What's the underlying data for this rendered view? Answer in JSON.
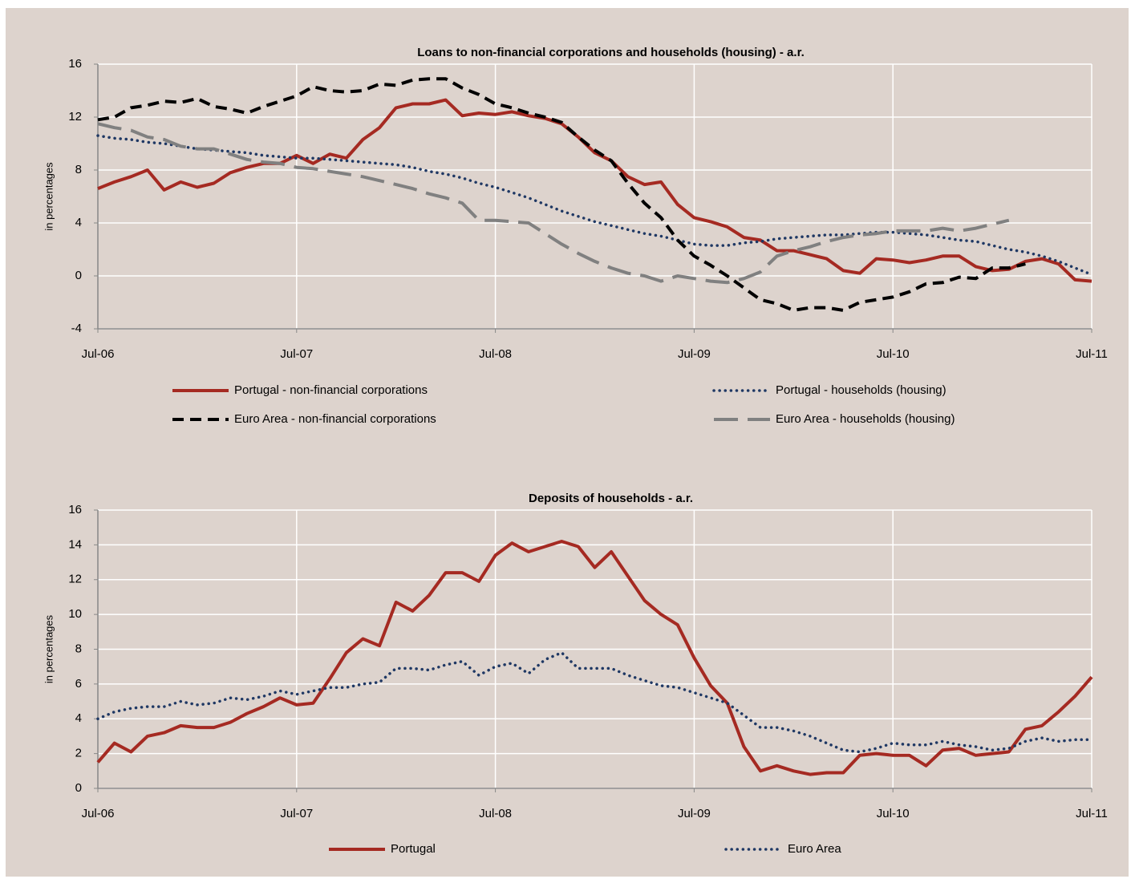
{
  "chart_data": [
    {
      "type": "line",
      "title": "Loans to non-financial corporations and households (housing) - a.r.",
      "ylabel": "in percentages",
      "categories": [
        "Jul-06",
        null,
        null,
        null,
        null,
        null,
        null,
        null,
        null,
        null,
        null,
        null,
        "Jul-07",
        null,
        null,
        null,
        null,
        null,
        null,
        null,
        null,
        null,
        null,
        null,
        "Jul-08",
        null,
        null,
        null,
        null,
        null,
        null,
        null,
        null,
        null,
        null,
        null,
        "Jul-09",
        null,
        null,
        null,
        null,
        null,
        null,
        null,
        null,
        null,
        null,
        null,
        "Jul-10",
        null,
        null,
        null,
        null,
        null,
        null,
        null,
        null,
        null,
        null,
        null,
        "Jul-11"
      ],
      "ylim": [
        -4,
        16
      ],
      "yticks": [
        -4,
        0,
        4,
        8,
        12,
        16
      ],
      "grid": true,
      "series": [
        {
          "name": "Portugal - non-financial corporations",
          "color": "#a52a22",
          "style": "solid",
          "values": [
            6.6,
            7.1,
            7.5,
            8.0,
            6.5,
            7.1,
            6.7,
            7.0,
            7.8,
            8.2,
            8.5,
            8.5,
            9.1,
            8.5,
            9.2,
            8.9,
            10.3,
            11.2,
            12.7,
            13.0,
            13.0,
            13.3,
            12.1,
            12.3,
            12.2,
            12.4,
            12.1,
            11.9,
            11.5,
            10.5,
            9.3,
            8.7,
            7.5,
            6.9,
            7.1,
            5.4,
            4.4,
            4.1,
            3.7,
            2.9,
            2.7,
            1.9,
            1.9,
            1.6,
            1.3,
            0.4,
            0.2,
            1.3,
            1.2,
            1.0,
            1.2,
            1.5,
            1.5,
            0.7,
            0.4,
            0.5,
            1.1,
            1.3,
            0.9,
            -0.3,
            -0.4
          ]
        },
        {
          "name": "Portugal - households (housing)",
          "color": "#1f3864",
          "style": "dotted",
          "values": [
            10.6,
            10.4,
            10.3,
            10.1,
            10.0,
            9.8,
            9.6,
            9.5,
            9.4,
            9.3,
            9.1,
            9.0,
            8.9,
            8.9,
            8.8,
            8.7,
            8.6,
            8.5,
            8.4,
            8.2,
            7.9,
            7.7,
            7.4,
            7.0,
            6.7,
            6.3,
            5.9,
            5.4,
            4.9,
            4.5,
            4.1,
            3.8,
            3.5,
            3.2,
            3.0,
            2.7,
            2.4,
            2.3,
            2.3,
            2.5,
            2.6,
            2.8,
            2.9,
            3.0,
            3.1,
            3.1,
            3.2,
            3.3,
            3.3,
            3.2,
            3.1,
            2.9,
            2.7,
            2.6,
            2.3,
            2.0,
            1.8,
            1.5,
            1.1,
            0.6,
            0.1
          ]
        },
        {
          "name": "Euro Area - non-financial corporations",
          "color": "#000000",
          "style": "dashed",
          "values": [
            11.8,
            12.0,
            12.7,
            12.9,
            13.2,
            13.1,
            13.4,
            12.8,
            12.6,
            12.3,
            12.8,
            13.2,
            13.6,
            14.3,
            14.0,
            13.9,
            14.0,
            14.5,
            14.4,
            14.8,
            14.9,
            14.9,
            14.2,
            13.7,
            13.0,
            12.7,
            12.3,
            12.0,
            11.6,
            10.5,
            9.5,
            8.7,
            7.0,
            5.5,
            4.4,
            2.7,
            1.5,
            0.8,
            0.0,
            -0.9,
            -1.8,
            -2.1,
            -2.6,
            -2.4,
            -2.4,
            -2.6,
            -2.0,
            -1.8,
            -1.6,
            -1.2,
            -0.6,
            -0.5,
            -0.1,
            -0.2,
            0.6,
            0.6,
            0.9,
            null,
            null,
            null,
            null
          ]
        },
        {
          "name": "Euro Area - households (housing)",
          "color": "#808080",
          "style": "longdash",
          "values": [
            11.5,
            11.2,
            11.0,
            10.5,
            10.3,
            9.8,
            9.6,
            9.6,
            9.2,
            8.8,
            8.6,
            8.5,
            8.2,
            8.1,
            7.9,
            7.7,
            7.5,
            7.2,
            6.9,
            6.6,
            6.2,
            5.9,
            5.5,
            4.2,
            4.2,
            4.1,
            4.0,
            3.2,
            2.4,
            1.7,
            1.1,
            0.6,
            0.2,
            0.0,
            -0.4,
            0.0,
            -0.2,
            -0.4,
            -0.5,
            -0.2,
            0.3,
            1.5,
            1.9,
            2.2,
            2.6,
            2.9,
            3.1,
            3.2,
            3.4,
            3.4,
            3.4,
            3.6,
            3.4,
            3.6,
            3.9,
            4.2,
            null,
            null,
            null,
            null,
            null
          ]
        }
      ]
    },
    {
      "type": "line",
      "title": "Deposits of households - a.r.",
      "ylabel": "in percentages",
      "categories": [
        "Jul-06",
        null,
        null,
        null,
        null,
        null,
        null,
        null,
        null,
        null,
        null,
        null,
        "Jul-07",
        null,
        null,
        null,
        null,
        null,
        null,
        null,
        null,
        null,
        null,
        null,
        "Jul-08",
        null,
        null,
        null,
        null,
        null,
        null,
        null,
        null,
        null,
        null,
        null,
        "Jul-09",
        null,
        null,
        null,
        null,
        null,
        null,
        null,
        null,
        null,
        null,
        null,
        "Jul-10",
        null,
        null,
        null,
        null,
        null,
        null,
        null,
        null,
        null,
        null,
        null,
        "Jul-11"
      ],
      "ylim": [
        0,
        16
      ],
      "yticks": [
        0,
        2,
        4,
        6,
        8,
        10,
        12,
        14,
        16
      ],
      "grid": true,
      "series": [
        {
          "name": "Portugal",
          "color": "#a52a22",
          "style": "solid",
          "values": [
            1.5,
            2.6,
            2.1,
            3.0,
            3.2,
            3.6,
            3.5,
            3.5,
            3.8,
            4.3,
            4.7,
            5.2,
            4.8,
            4.9,
            6.3,
            7.8,
            8.6,
            8.2,
            10.7,
            10.2,
            11.1,
            12.4,
            12.4,
            11.9,
            13.4,
            14.1,
            13.6,
            13.9,
            14.2,
            13.9,
            12.7,
            13.6,
            12.2,
            10.8,
            10.0,
            9.4,
            7.5,
            5.9,
            4.9,
            2.4,
            1.0,
            1.3,
            1.0,
            0.8,
            0.9,
            0.9,
            1.9,
            2.0,
            1.9,
            1.9,
            1.3,
            2.2,
            2.3,
            1.9,
            2.0,
            2.1,
            3.4,
            3.6,
            4.4,
            5.3,
            6.4
          ]
        },
        {
          "name": "Euro Area",
          "color": "#1f3864",
          "style": "dotted",
          "values": [
            4.0,
            4.4,
            4.6,
            4.7,
            4.7,
            5.0,
            4.8,
            4.9,
            5.2,
            5.1,
            5.3,
            5.6,
            5.4,
            5.6,
            5.8,
            5.8,
            6.0,
            6.1,
            6.9,
            6.9,
            6.8,
            7.1,
            7.3,
            6.5,
            7.0,
            7.2,
            6.6,
            7.4,
            7.8,
            6.9,
            6.9,
            6.9,
            6.5,
            6.2,
            5.9,
            5.8,
            5.5,
            5.2,
            4.9,
            4.2,
            3.5,
            3.5,
            3.3,
            3.0,
            2.6,
            2.2,
            2.1,
            2.3,
            2.6,
            2.5,
            2.5,
            2.7,
            2.5,
            2.4,
            2.2,
            2.3,
            2.7,
            2.9,
            2.7,
            2.8,
            2.8
          ]
        }
      ]
    }
  ]
}
